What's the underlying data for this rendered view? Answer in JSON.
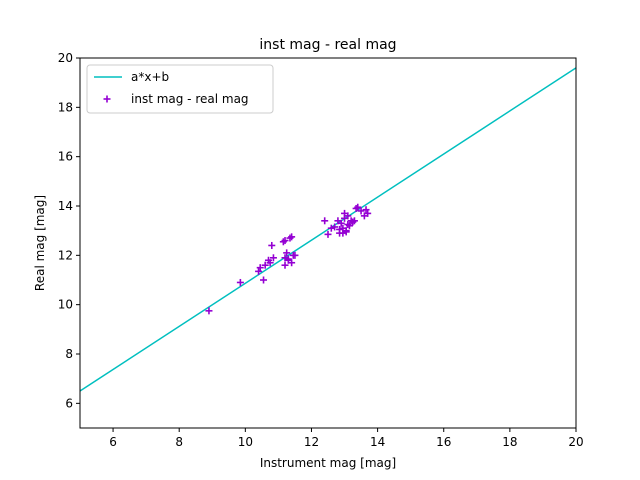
{
  "chart_data": {
    "type": "scatter",
    "title": "inst mag - real mag",
    "xlabel": "Instrument mag [mag]",
    "ylabel": "Real mag [mag]",
    "xlim": [
      5,
      20
    ],
    "ylim": [
      5,
      20
    ],
    "xticks": [
      6,
      8,
      10,
      12,
      14,
      16,
      18,
      20
    ],
    "yticks": [
      6,
      8,
      10,
      12,
      14,
      16,
      18,
      20
    ],
    "grid": false,
    "legend_position": "upper-left",
    "series": [
      {
        "name": "a*x+b",
        "kind": "line",
        "color": "#00bfbf",
        "x": [
          5,
          20
        ],
        "y": [
          6.5,
          19.6
        ]
      },
      {
        "name": "inst mag - real mag",
        "kind": "scatter",
        "marker": "+",
        "color": "#9400d3",
        "x": [
          8.9,
          9.85,
          10.4,
          10.45,
          10.55,
          10.6,
          10.7,
          10.75,
          10.8,
          10.85,
          11.15,
          11.2,
          11.2,
          11.25,
          11.3,
          11.35,
          11.4,
          11.45,
          11.2,
          11.3,
          11.4,
          11.5,
          12.4,
          12.5,
          12.6,
          12.7,
          12.8,
          12.85,
          12.9,
          12.95,
          13.0,
          13.05,
          13.1,
          13.15,
          13.2,
          13.25,
          13.3,
          13.35,
          13.4,
          13.5,
          13.6,
          13.65,
          13.7,
          12.85,
          12.95,
          13.0,
          13.05,
          13.1
        ],
        "y": [
          9.75,
          10.9,
          11.35,
          11.5,
          11.0,
          11.6,
          11.8,
          11.7,
          12.4,
          11.9,
          12.55,
          12.6,
          11.9,
          12.1,
          11.85,
          12.7,
          11.7,
          12.0,
          11.6,
          11.8,
          12.75,
          12.0,
          13.4,
          12.85,
          13.1,
          13.15,
          13.4,
          13.05,
          13.3,
          12.9,
          13.7,
          13.0,
          13.6,
          13.2,
          13.4,
          13.35,
          13.4,
          13.9,
          13.95,
          13.8,
          13.6,
          13.85,
          13.7,
          12.9,
          13.1,
          13.5,
          12.95,
          13.25
        ]
      }
    ]
  }
}
